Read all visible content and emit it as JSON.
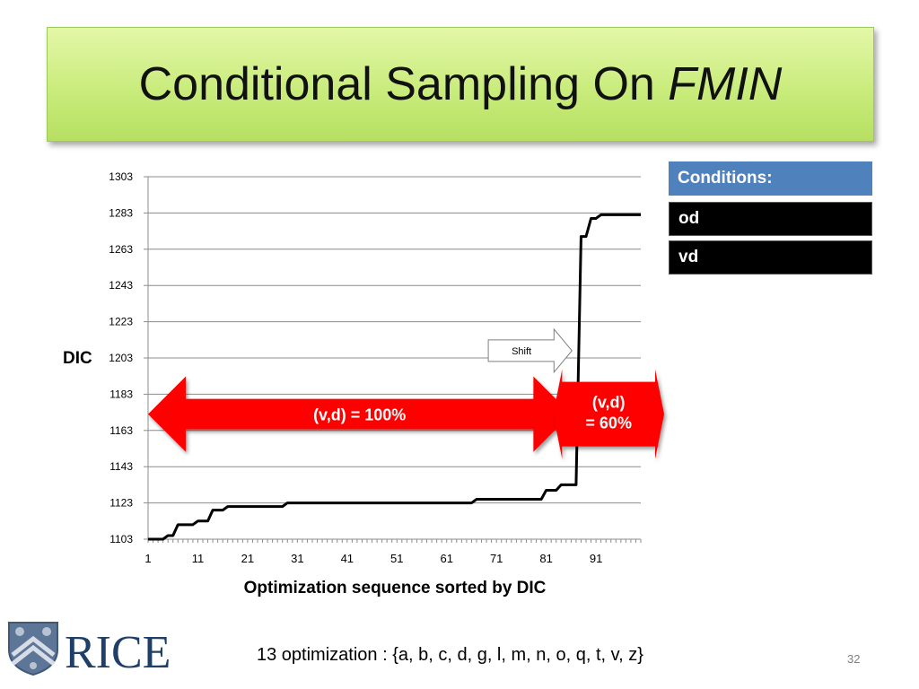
{
  "slide": {
    "title_main": "Conditional Sampling On ",
    "title_italic": "FMIN",
    "footer": "13 optimization : {a, b, c, d, g, l, m, n, o, q, t, v, z}",
    "page_number": "32",
    "logo_text": "RICE"
  },
  "conditions": {
    "header": "Conditions:",
    "items": [
      "od",
      "vd"
    ],
    "header_color": "#4f81bd",
    "item_color": "#000000"
  },
  "chart_data": {
    "type": "line",
    "ylabel": "DIC",
    "xlabel": "Optimization sequence sorted by DIC",
    "ylim": [
      1103,
      1303
    ],
    "yticks": [
      1103,
      1123,
      1143,
      1163,
      1183,
      1203,
      1223,
      1243,
      1263,
      1283,
      1303
    ],
    "xlim": [
      1,
      100
    ],
    "xtick_labels": [
      1,
      11,
      21,
      31,
      41,
      51,
      61,
      71,
      81,
      91
    ],
    "grid": "horizontal",
    "series": [
      {
        "values": [
          1103,
          1103,
          1103,
          1103,
          1105,
          1105,
          1111,
          1111,
          1111,
          1111,
          1113,
          1113,
          1113,
          1119,
          1119,
          1119,
          1121,
          1121,
          1121,
          1121,
          1121,
          1121,
          1121,
          1121,
          1121,
          1121,
          1121,
          1121,
          1123,
          1123,
          1123,
          1123,
          1123,
          1123,
          1123,
          1123,
          1123,
          1123,
          1123,
          1123,
          1123,
          1123,
          1123,
          1123,
          1123,
          1123,
          1123,
          1123,
          1123,
          1123,
          1123,
          1123,
          1123,
          1123,
          1123,
          1123,
          1123,
          1123,
          1123,
          1123,
          1123,
          1123,
          1123,
          1123,
          1123,
          1123,
          1125,
          1125,
          1125,
          1125,
          1125,
          1125,
          1125,
          1125,
          1125,
          1125,
          1125,
          1125,
          1125,
          1125,
          1130,
          1130,
          1130,
          1133,
          1133,
          1133,
          1133,
          1270,
          1270,
          1280,
          1280,
          1282,
          1282,
          1282,
          1282,
          1282,
          1282,
          1282,
          1282,
          1282
        ],
        "color": "#000000"
      }
    ],
    "annotations": [
      {
        "text": "(v,d) = 100%",
        "type": "double-arrow",
        "x_from": 1,
        "x_to": 86,
        "y_center": 1172,
        "color": "#ff0000"
      },
      {
        "text_lines": [
          "(v,d)",
          "= 60%"
        ],
        "type": "double-arrow",
        "x_from": 86,
        "x_to": 100,
        "y_center": 1172,
        "color": "#ff0000"
      },
      {
        "text": "Shift",
        "type": "block-arrow",
        "x_from": 69,
        "x_to": 84,
        "y_center": 1207,
        "color": "#ffffff"
      }
    ]
  }
}
